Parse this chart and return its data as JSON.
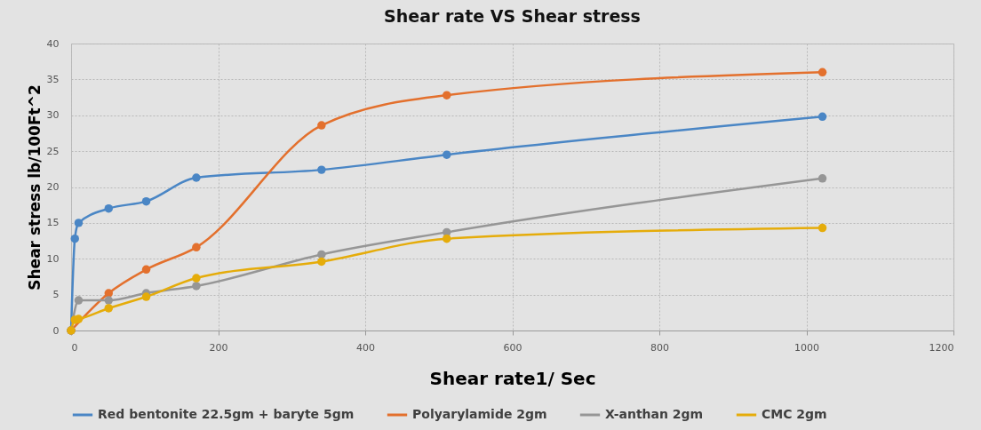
{
  "chart_data": {
    "type": "line",
    "title": "Shear rate VS Shear stress",
    "xlabel": "Shear  rate1/ Sec",
    "ylabel": "Shear stress lb/100Ft^2",
    "x": [
      0,
      5.11,
      10.22,
      51.1,
      102.2,
      170.3,
      340.6,
      510.9,
      1021.8
    ],
    "series": [
      {
        "name": "Red bentonite 22.5gm + baryte 5gm",
        "color": "#4a86c5",
        "values": [
          0,
          12.8,
          15,
          17,
          18,
          21.3,
          22.4,
          24.5,
          29.8
        ]
      },
      {
        "name": "Polyarylamide 2gm",
        "color": "#e3702d",
        "values": [
          0,
          null,
          null,
          5.2,
          8.5,
          11.6,
          28.6,
          32.8,
          36
        ]
      },
      {
        "name": "X-anthan 2gm",
        "color": "#969696",
        "values": [
          0,
          null,
          4.2,
          4.2,
          5.2,
          6.2,
          10.6,
          13.7,
          21.2
        ]
      },
      {
        "name": "CMC 2gm",
        "color": "#e5ac0a",
        "values": [
          0,
          1.5,
          1.6,
          3.1,
          4.7,
          7.3,
          9.6,
          12.8,
          14.3
        ]
      }
    ],
    "xlim": [
      0,
      1200
    ],
    "xticks": [
      0,
      200,
      400,
      600,
      800,
      1000,
      1200
    ],
    "ylim": [
      0,
      40
    ],
    "yticks": [
      0,
      5,
      10,
      15,
      20,
      25,
      30,
      35,
      40
    ],
    "grid": true,
    "legend": "bottom",
    "marker": "circle",
    "line_style": "solid"
  }
}
